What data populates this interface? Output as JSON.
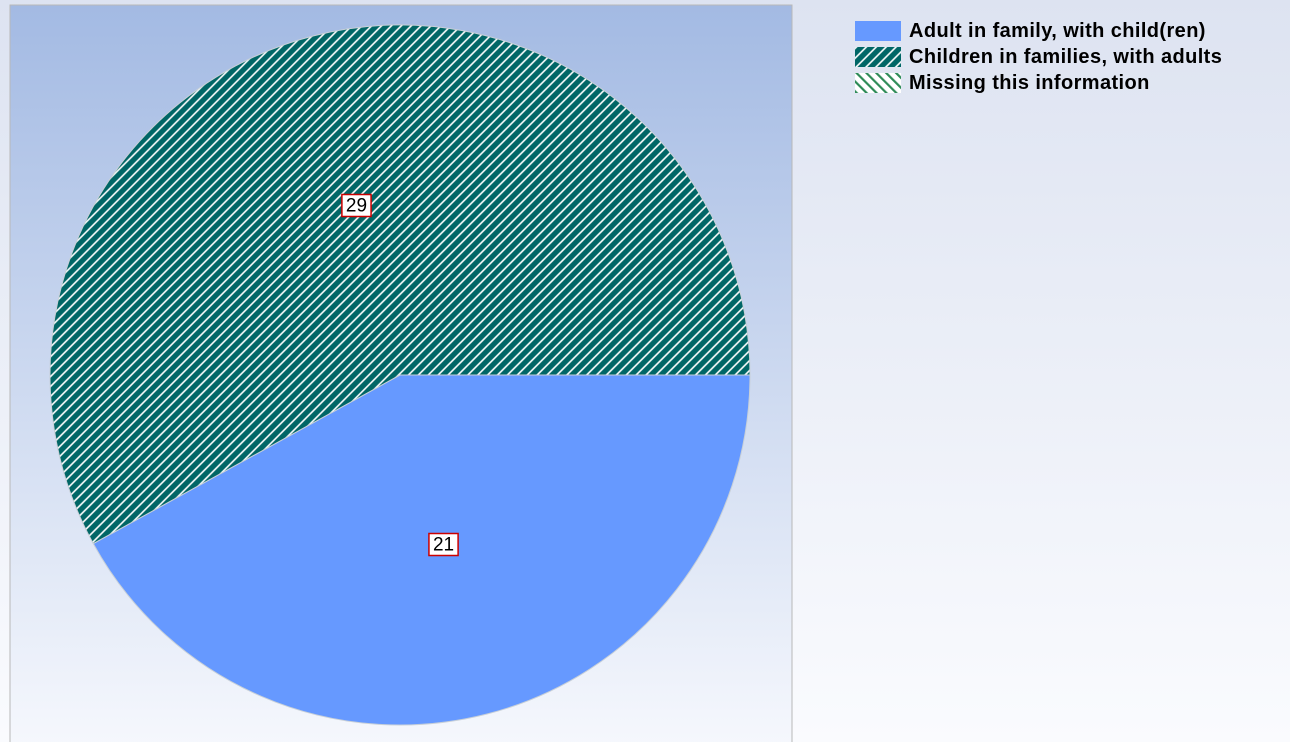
{
  "chart_data": {
    "type": "pie",
    "categories": [
      "Adult in family, with child(ren)",
      "Children in families, with adults",
      "Missing this information"
    ],
    "values": [
      21,
      29,
      0
    ],
    "colors": [
      "#6699ff",
      "#006666",
      "#2e8b57"
    ],
    "hatch": [
      "none",
      "forward",
      "backward"
    ],
    "legend": "top-right"
  }
}
